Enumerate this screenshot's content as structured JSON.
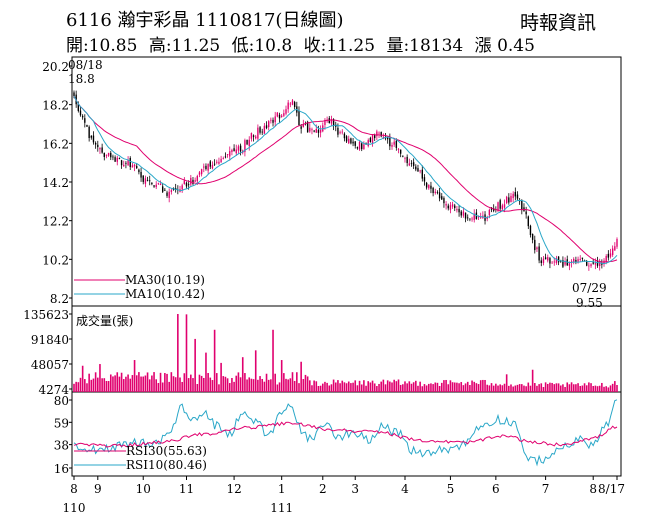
{
  "header": {
    "title": "6116  瀚宇彩晶 1110817(日線圖)",
    "source": "時報資訊",
    "ohlc": [
      {
        "label": "開",
        "value": "10.85"
      },
      {
        "label": "高",
        "value": "11.25"
      },
      {
        "label": "低",
        "value": "10.8"
      },
      {
        "label": "收",
        "value": "11.25"
      },
      {
        "label": "量",
        "value": "18134"
      },
      {
        "label": "漲",
        "value": "0.45"
      }
    ]
  },
  "chart_data": [
    {
      "type": "candlestick",
      "yticks": [
        "20.2",
        "18.2",
        "16.2",
        "14.2",
        "12.2",
        "10.2",
        "8.2"
      ],
      "ylim": [
        8.2,
        20.2
      ],
      "annotations": [
        {
          "text_date": "08/18",
          "text_value": "18.8",
          "kind": "high"
        },
        {
          "text_date": "07/29",
          "text_value": "9.55",
          "kind": "low"
        }
      ],
      "colors": {
        "up": "#e0006e",
        "down": "#000000",
        "ma30": "#e0006e",
        "ma10": "#2aa7c8"
      },
      "legend": [
        {
          "label": "MA30(10.19)",
          "color": "#e0006e"
        },
        {
          "label": "MA10(10.42)",
          "color": "#2aa7c8"
        }
      ],
      "anchors": [
        {
          "i": 0,
          "p": 18.6
        },
        {
          "i": 3,
          "p": 17.6
        },
        {
          "i": 8,
          "p": 16.5
        },
        {
          "i": 15,
          "p": 15.6
        },
        {
          "i": 25,
          "p": 15.2
        },
        {
          "i": 35,
          "p": 14.2
        },
        {
          "i": 45,
          "p": 13.6
        },
        {
          "i": 55,
          "p": 14.3
        },
        {
          "i": 65,
          "p": 15.3
        },
        {
          "i": 75,
          "p": 15.8
        },
        {
          "i": 85,
          "p": 16.8
        },
        {
          "i": 95,
          "p": 17.6
        },
        {
          "i": 100,
          "p": 18.3
        },
        {
          "i": 106,
          "p": 17.0
        },
        {
          "i": 112,
          "p": 16.8
        },
        {
          "i": 118,
          "p": 17.4
        },
        {
          "i": 124,
          "p": 16.6
        },
        {
          "i": 132,
          "p": 16.1
        },
        {
          "i": 140,
          "p": 16.6
        },
        {
          "i": 148,
          "p": 16.2
        },
        {
          "i": 156,
          "p": 15.2
        },
        {
          "i": 164,
          "p": 14.0
        },
        {
          "i": 172,
          "p": 13.0
        },
        {
          "i": 180,
          "p": 12.5
        },
        {
          "i": 188,
          "p": 12.3
        },
        {
          "i": 196,
          "p": 13.0
        },
        {
          "i": 203,
          "p": 13.4
        },
        {
          "i": 208,
          "p": 12.8
        },
        {
          "i": 212,
          "p": 11.0
        },
        {
          "i": 216,
          "p": 10.2
        },
        {
          "i": 222,
          "p": 10.2
        },
        {
          "i": 228,
          "p": 9.9
        },
        {
          "i": 234,
          "p": 10.1
        },
        {
          "i": 238,
          "p": 10.0
        },
        {
          "i": 241,
          "p": 9.8
        },
        {
          "i": 245,
          "p": 10.2
        },
        {
          "i": 249,
          "p": 10.8
        },
        {
          "i": 251,
          "p": 11.25
        }
      ]
    },
    {
      "type": "bar",
      "title": "成交量(張)",
      "yticks": [
        "135623",
        "91840",
        "48057",
        "4274"
      ],
      "ylim": [
        4274,
        135623
      ],
      "spikes": [
        {
          "i": 48,
          "v": 135623
        },
        {
          "i": 52,
          "v": 135000
        },
        {
          "i": 56,
          "v": 92000
        },
        {
          "i": 61,
          "v": 68000
        },
        {
          "i": 65,
          "v": 108000
        },
        {
          "i": 68,
          "v": 50000
        },
        {
          "i": 78,
          "v": 60000
        },
        {
          "i": 84,
          "v": 72000
        },
        {
          "i": 92,
          "v": 108000
        },
        {
          "i": 96,
          "v": 55000
        },
        {
          "i": 105,
          "v": 52000
        },
        {
          "i": 28,
          "v": 55000
        },
        {
          "i": 12,
          "v": 48000
        },
        {
          "i": 4,
          "v": 45000
        },
        {
          "i": 200,
          "v": 30000
        },
        {
          "i": 212,
          "v": 38000
        },
        {
          "i": 250,
          "v": 18134
        }
      ]
    },
    {
      "type": "line",
      "yticks": [
        "80",
        "59",
        "38",
        "16"
      ],
      "ylim": [
        16,
        80
      ],
      "legend": [
        {
          "label": "RSI30(55.63)",
          "color": "#e0006e"
        },
        {
          "label": "RSI10(80.46)",
          "color": "#2aa7c8"
        }
      ],
      "rsi10_anchors": [
        {
          "i": 0,
          "v": 38
        },
        {
          "i": 10,
          "v": 34
        },
        {
          "i": 20,
          "v": 36
        },
        {
          "i": 30,
          "v": 40
        },
        {
          "i": 38,
          "v": 38
        },
        {
          "i": 44,
          "v": 52
        },
        {
          "i": 50,
          "v": 72
        },
        {
          "i": 55,
          "v": 60
        },
        {
          "i": 60,
          "v": 70
        },
        {
          "i": 66,
          "v": 56
        },
        {
          "i": 72,
          "v": 48
        },
        {
          "i": 78,
          "v": 70
        },
        {
          "i": 84,
          "v": 60
        },
        {
          "i": 90,
          "v": 45
        },
        {
          "i": 96,
          "v": 68
        },
        {
          "i": 100,
          "v": 76
        },
        {
          "i": 105,
          "v": 52
        },
        {
          "i": 110,
          "v": 42
        },
        {
          "i": 116,
          "v": 58
        },
        {
          "i": 122,
          "v": 46
        },
        {
          "i": 130,
          "v": 50
        },
        {
          "i": 136,
          "v": 42
        },
        {
          "i": 142,
          "v": 56
        },
        {
          "i": 150,
          "v": 48
        },
        {
          "i": 156,
          "v": 32
        },
        {
          "i": 164,
          "v": 30
        },
        {
          "i": 172,
          "v": 34
        },
        {
          "i": 180,
          "v": 38
        },
        {
          "i": 188,
          "v": 56
        },
        {
          "i": 196,
          "v": 62
        },
        {
          "i": 204,
          "v": 58
        },
        {
          "i": 210,
          "v": 22
        },
        {
          "i": 216,
          "v": 24
        },
        {
          "i": 222,
          "v": 30
        },
        {
          "i": 228,
          "v": 38
        },
        {
          "i": 234,
          "v": 42
        },
        {
          "i": 240,
          "v": 38
        },
        {
          "i": 246,
          "v": 56
        },
        {
          "i": 251,
          "v": 80
        }
      ],
      "rsi30_anchors": [
        {
          "i": 0,
          "v": 38
        },
        {
          "i": 20,
          "v": 37
        },
        {
          "i": 40,
          "v": 40
        },
        {
          "i": 60,
          "v": 48
        },
        {
          "i": 80,
          "v": 54
        },
        {
          "i": 100,
          "v": 58
        },
        {
          "i": 120,
          "v": 52
        },
        {
          "i": 140,
          "v": 50
        },
        {
          "i": 160,
          "v": 42
        },
        {
          "i": 180,
          "v": 40
        },
        {
          "i": 200,
          "v": 46
        },
        {
          "i": 212,
          "v": 40
        },
        {
          "i": 225,
          "v": 38
        },
        {
          "i": 240,
          "v": 44
        },
        {
          "i": 251,
          "v": 55
        }
      ]
    }
  ],
  "xaxis": {
    "months": [
      {
        "label": "8",
        "i": 0
      },
      {
        "label": "9",
        "i": 11
      },
      {
        "label": "10",
        "i": 32
      },
      {
        "label": "11",
        "i": 52
      },
      {
        "label": "12",
        "i": 74
      },
      {
        "label": "1",
        "i": 96
      },
      {
        "label": "2",
        "i": 115
      },
      {
        "label": "3",
        "i": 130
      },
      {
        "label": "4",
        "i": 153
      },
      {
        "label": "5",
        "i": 174
      },
      {
        "label": "6",
        "i": 195
      },
      {
        "label": "7",
        "i": 218
      },
      {
        "label": "8",
        "i": 240
      },
      {
        "label": "8/17",
        "i": 251
      }
    ],
    "years": [
      {
        "label": "110",
        "i": 0
      },
      {
        "label": "111",
        "i": 96
      }
    ]
  }
}
